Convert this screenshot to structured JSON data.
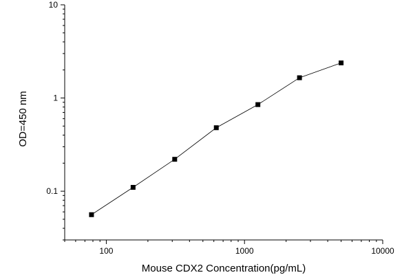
{
  "chart_data": {
    "type": "scatter",
    "title": "",
    "xlabel": "Mouse CDX2 Concentration(pg/mL)",
    "ylabel": "OD=450 nm",
    "x_scale": "log",
    "y_scale": "log",
    "xlim": [
      50,
      10000
    ],
    "ylim": [
      0.03,
      10
    ],
    "x_ticks": [
      100,
      1000,
      10000
    ],
    "x_tick_labels": [
      "100",
      "1000",
      "10000"
    ],
    "y_ticks": [
      0.1,
      1,
      10
    ],
    "y_tick_labels": [
      "0.1",
      "1",
      "10"
    ],
    "grid": false,
    "legend": "none",
    "marker": "square",
    "connect_points": true,
    "color": "#000000",
    "series": [
      {
        "x": [
          78.125,
          156.25,
          312.5,
          625,
          1250,
          2500,
          5000
        ],
        "y": [
          0.056,
          0.11,
          0.22,
          0.48,
          0.85,
          1.65,
          2.38
        ]
      }
    ]
  }
}
